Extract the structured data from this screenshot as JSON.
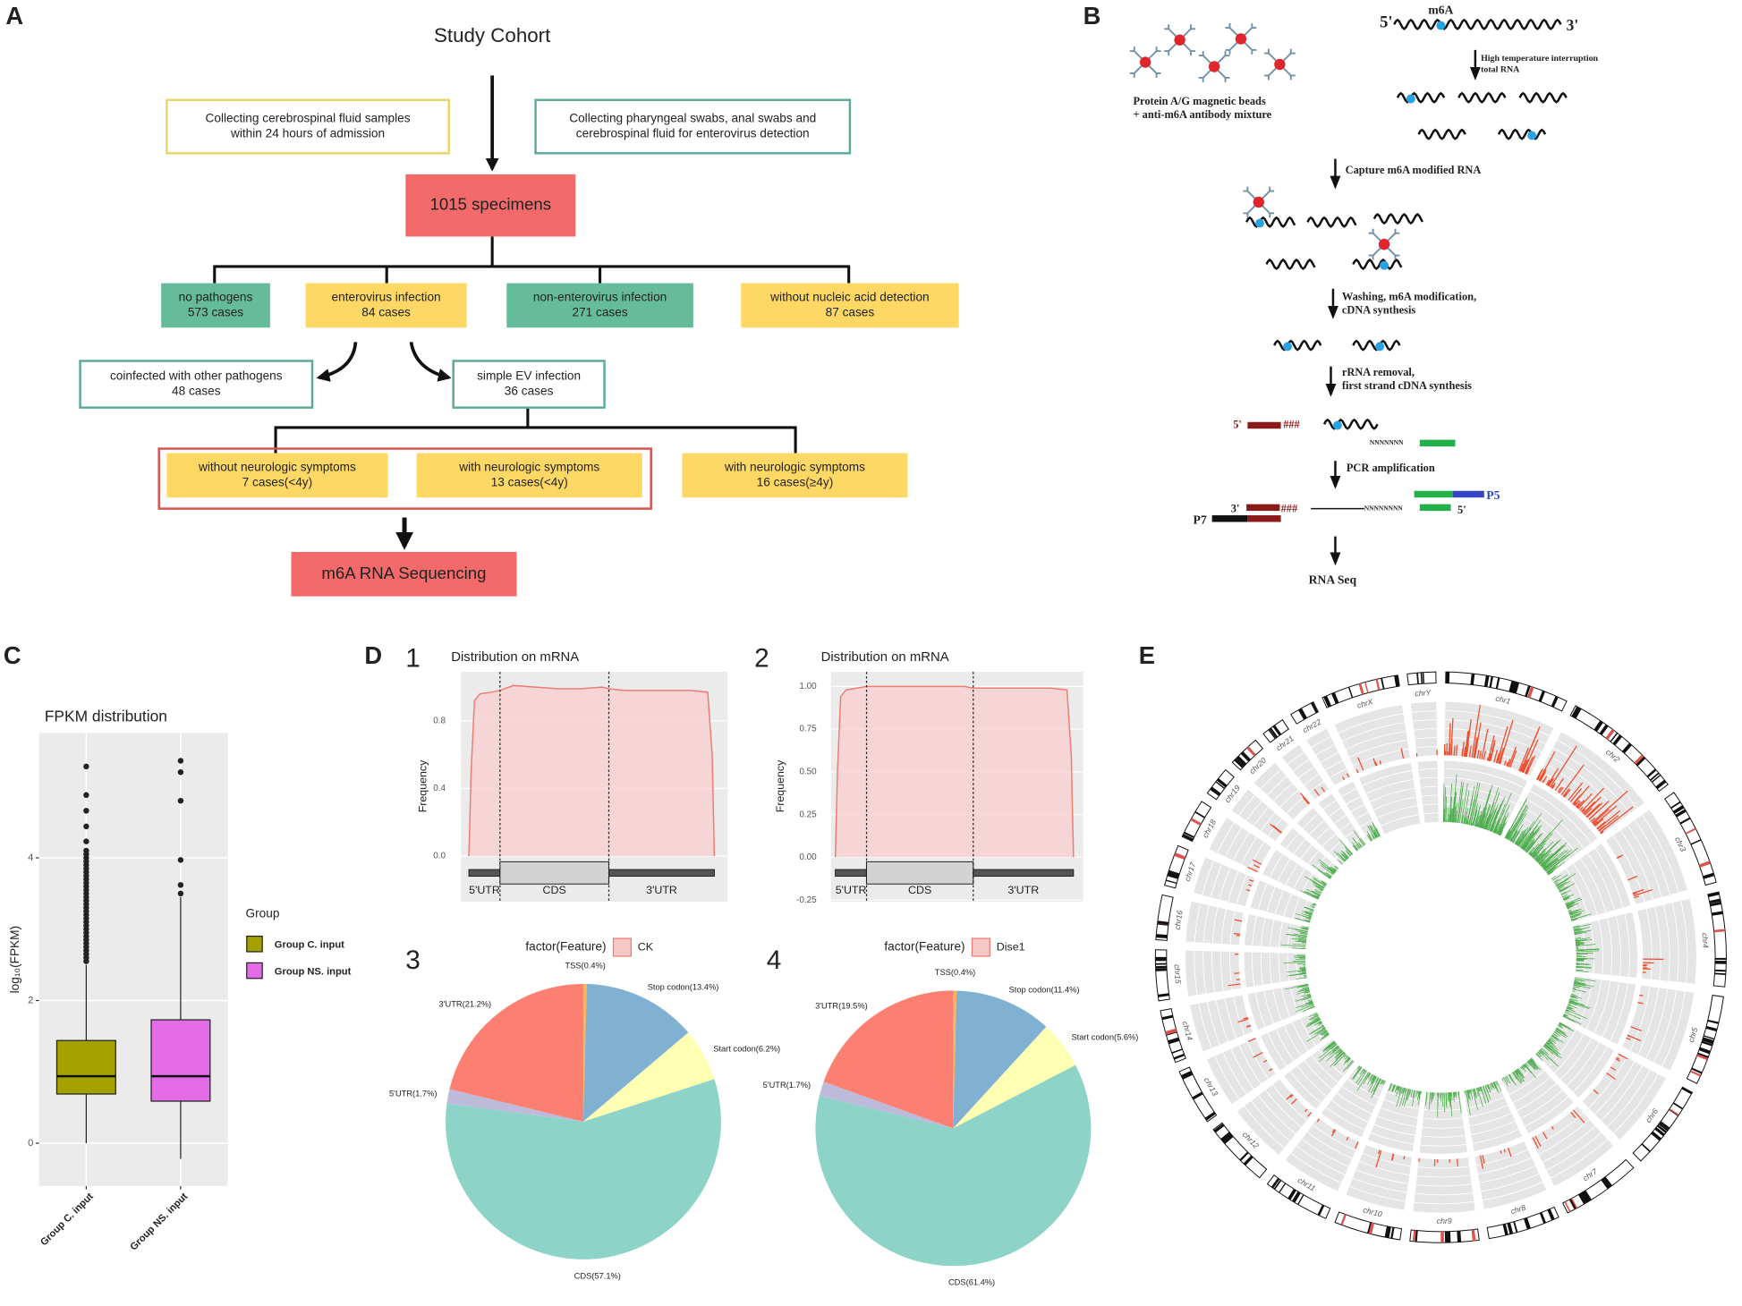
{
  "panel_labels": [
    "A",
    "B",
    "C",
    "D",
    "E",
    "1",
    "2",
    "3",
    "4"
  ],
  "flowchart": {
    "title": "Study Cohort",
    "nodes": [
      {
        "lines": [
          "Collecting cerebrospinal fluid samples",
          "within 24 hours of admission"
        ]
      },
      {
        "lines": [
          "Collecting pharyngeal  swabs, anal swabs and",
          "cerebrospinal  fluid for enterovirus detection"
        ]
      },
      {
        "lines": [
          "1015 specimens"
        ]
      },
      {
        "lines": [
          "no pathogens",
          "573 cases"
        ]
      },
      {
        "lines": [
          "enterovirus  infection",
          "84 cases"
        ]
      },
      {
        "lines": [
          "non-enterovirus  infection",
          "271 cases"
        ]
      },
      {
        "lines": [
          "without nucleic acid detection",
          "87 cases"
        ]
      },
      {
        "lines": [
          "coinfected with other pathogens",
          "48 cases"
        ]
      },
      {
        "lines": [
          "simple EV infection",
          "36 cases"
        ]
      },
      {
        "lines": [
          "without neurologic symptoms",
          "7 cases(<4y)"
        ]
      },
      {
        "lines": [
          "with neurologic symptoms",
          "13 cases(<4y)"
        ]
      },
      {
        "lines": [
          "with neurologic symptoms",
          "16 cases(≥4y)"
        ]
      },
      {
        "lines": [
          "m6A RNA Sequencing"
        ]
      }
    ]
  },
  "protocol": {
    "labels": [
      "Protein A/G magnetic beads",
      "+ anti-m6A antibody mixture",
      "5'",
      "m6A",
      "3'",
      "High temperature interruption",
      "total RNA",
      "Capture m6A modified RNA",
      "Washing, m6A modification,",
      "cDNA synthesis",
      "rRNA removal,",
      "first strand cDNA synthesis",
      "5'",
      "###",
      "NNNNNNN",
      "PCR amplification",
      "3'",
      "###",
      "NNNNNNNN",
      "5'",
      "P5",
      "P7",
      "RNA Seq"
    ]
  },
  "chart_data": [
    {
      "type": "box",
      "title": "FPKM distribution",
      "y_label": "log₁₀(FPKM)",
      "categories": [
        "Group C. input",
        "Group NS. input"
      ],
      "legend_title": "Group",
      "ylim": [
        -0.6,
        5.75
      ],
      "yticks": [
        0,
        2,
        4
      ],
      "series": [
        {
          "name": "Group C. input",
          "color": "#a3a000",
          "q1": 0.69,
          "median": 0.94,
          "q3": 1.44,
          "whisker_low": 0,
          "whisker_high": 2.5,
          "outliers": [
            2.55,
            2.6,
            2.65,
            2.7,
            2.75,
            2.8,
            2.85,
            2.9,
            2.95,
            3.0,
            3.05,
            3.1,
            3.15,
            3.2,
            3.25,
            3.3,
            3.35,
            3.4,
            3.45,
            3.5,
            3.55,
            3.6,
            3.65,
            3.7,
            3.75,
            3.8,
            3.85,
            3.9,
            3.95,
            4.0,
            4.05,
            4.1,
            4.23,
            4.44,
            4.66,
            4.88,
            5.28
          ]
        },
        {
          "name": "Group NS. input",
          "color": "#e36be6",
          "q1": 0.59,
          "median": 0.94,
          "q3": 1.73,
          "whisker_low": -0.22,
          "whisker_high": 3.45,
          "outliers": [
            3.5,
            3.62,
            3.97,
            4.8,
            5.2,
            5.36
          ]
        }
      ]
    },
    {
      "type": "area",
      "title": "Distribution on mRNA",
      "y_label": "Frequency",
      "color": "#ef7c74",
      "xlim": [
        -0.07,
        2.33
      ],
      "ylim": [
        -0.27,
        1.09
      ],
      "yticks": [
        {
          "value": 0,
          "label": "0.0"
        },
        0.4,
        0.8
      ],
      "x": [
        0,
        0.02,
        0.05,
        0.1,
        0.2,
        0.28,
        0.4,
        0.6,
        0.8,
        1.0,
        1.2,
        1.26,
        1.4,
        1.7,
        2.0,
        2.15,
        2.19,
        2.21
      ],
      "values": [
        0,
        0.5,
        0.92,
        0.96,
        0.97,
        0.98,
        1.01,
        1.0,
        0.99,
        0.99,
        1.0,
        0.99,
        0.98,
        0.98,
        0.98,
        0.97,
        0.6,
        0
      ],
      "regions": [
        {
          "label": "5'UTR",
          "start": 0,
          "end": 0.28
        },
        {
          "label": "CDS",
          "start": 0.28,
          "end": 1.26
        },
        {
          "label": "3'UTR",
          "start": 1.26,
          "end": 2.21
        }
      ]
    },
    {
      "type": "area",
      "title": "Distribution on mRNA",
      "y_label": "Frequency",
      "color": "#ef7c74",
      "xlim": [
        -0.04,
        2.3
      ],
      "ylim": [
        -0.26,
        1.085
      ],
      "yticks": [
        -0.25,
        {
          "value": 0,
          "label": "0.00"
        },
        0.25,
        {
          "value": 0.5,
          "label": "0.50"
        },
        0.75,
        {
          "value": 1,
          "label": "1.00"
        }
      ],
      "x": [
        0,
        0.02,
        0.05,
        0.1,
        0.2,
        0.29,
        0.4,
        0.6,
        0.8,
        1.0,
        1.2,
        1.28,
        1.4,
        1.7,
        2.0,
        2.15,
        2.19,
        2.21
      ],
      "values": [
        0,
        0.5,
        0.94,
        0.98,
        0.99,
        1.0,
        1.0,
        1.0,
        1.0,
        1.0,
        1.0,
        0.99,
        0.99,
        0.99,
        0.99,
        0.98,
        0.6,
        0
      ],
      "regions": [
        {
          "label": "5'UTR",
          "start": 0,
          "end": 0.29
        },
        {
          "label": "CDS",
          "start": 0.29,
          "end": 1.28
        },
        {
          "label": "3'UTR",
          "start": 1.28,
          "end": 2.21
        }
      ]
    },
    {
      "type": "pie",
      "legend_title": "factor(Feature)",
      "legend_entry": "CK",
      "values": [
        0.4,
        13.4,
        6.2,
        57.1,
        1.7,
        21.2
      ],
      "value_labels": [
        "TSS(0.4%)",
        "Stop codon(13.4%)",
        "Start codon(6.2%)",
        "CDS(57.1%)",
        "5'UTR(1.7%)",
        "3'UTR(21.2%)"
      ],
      "colors": [
        "#fdb462",
        "#80b1d3",
        "#ffffb3",
        "#8dd3c7",
        "#bebada",
        "#fb8072"
      ]
    },
    {
      "type": "pie",
      "legend_title": "factor(Feature)",
      "legend_entry": "Dise1",
      "values": [
        0.4,
        11.4,
        5.6,
        61.4,
        1.7,
        19.5
      ],
      "value_labels": [
        "TSS(0.4%)",
        "Stop codon(11.4%)",
        "Start codon(5.6%)",
        "CDS(61.4%)",
        "5'UTR(1.7%)",
        "3'UTR(19.5%)"
      ],
      "colors": [
        "#fdb462",
        "#80b1d3",
        "#ffffb3",
        "#8dd3c7",
        "#bebada",
        "#fb8072"
      ]
    }
  ],
  "circos": {
    "chromosomes": [
      "chr1",
      "chr2",
      "chr3",
      "chr4",
      "chr5",
      "chr6",
      "chr7",
      "chr8",
      "chr9",
      "chr10",
      "chr11",
      "chr12",
      "chr13",
      "chr14",
      "chr15",
      "chr16",
      "chr17",
      "chr18",
      "chr19",
      "chr20",
      "chr21",
      "chr22",
      "chrX",
      "chrY"
    ]
  }
}
